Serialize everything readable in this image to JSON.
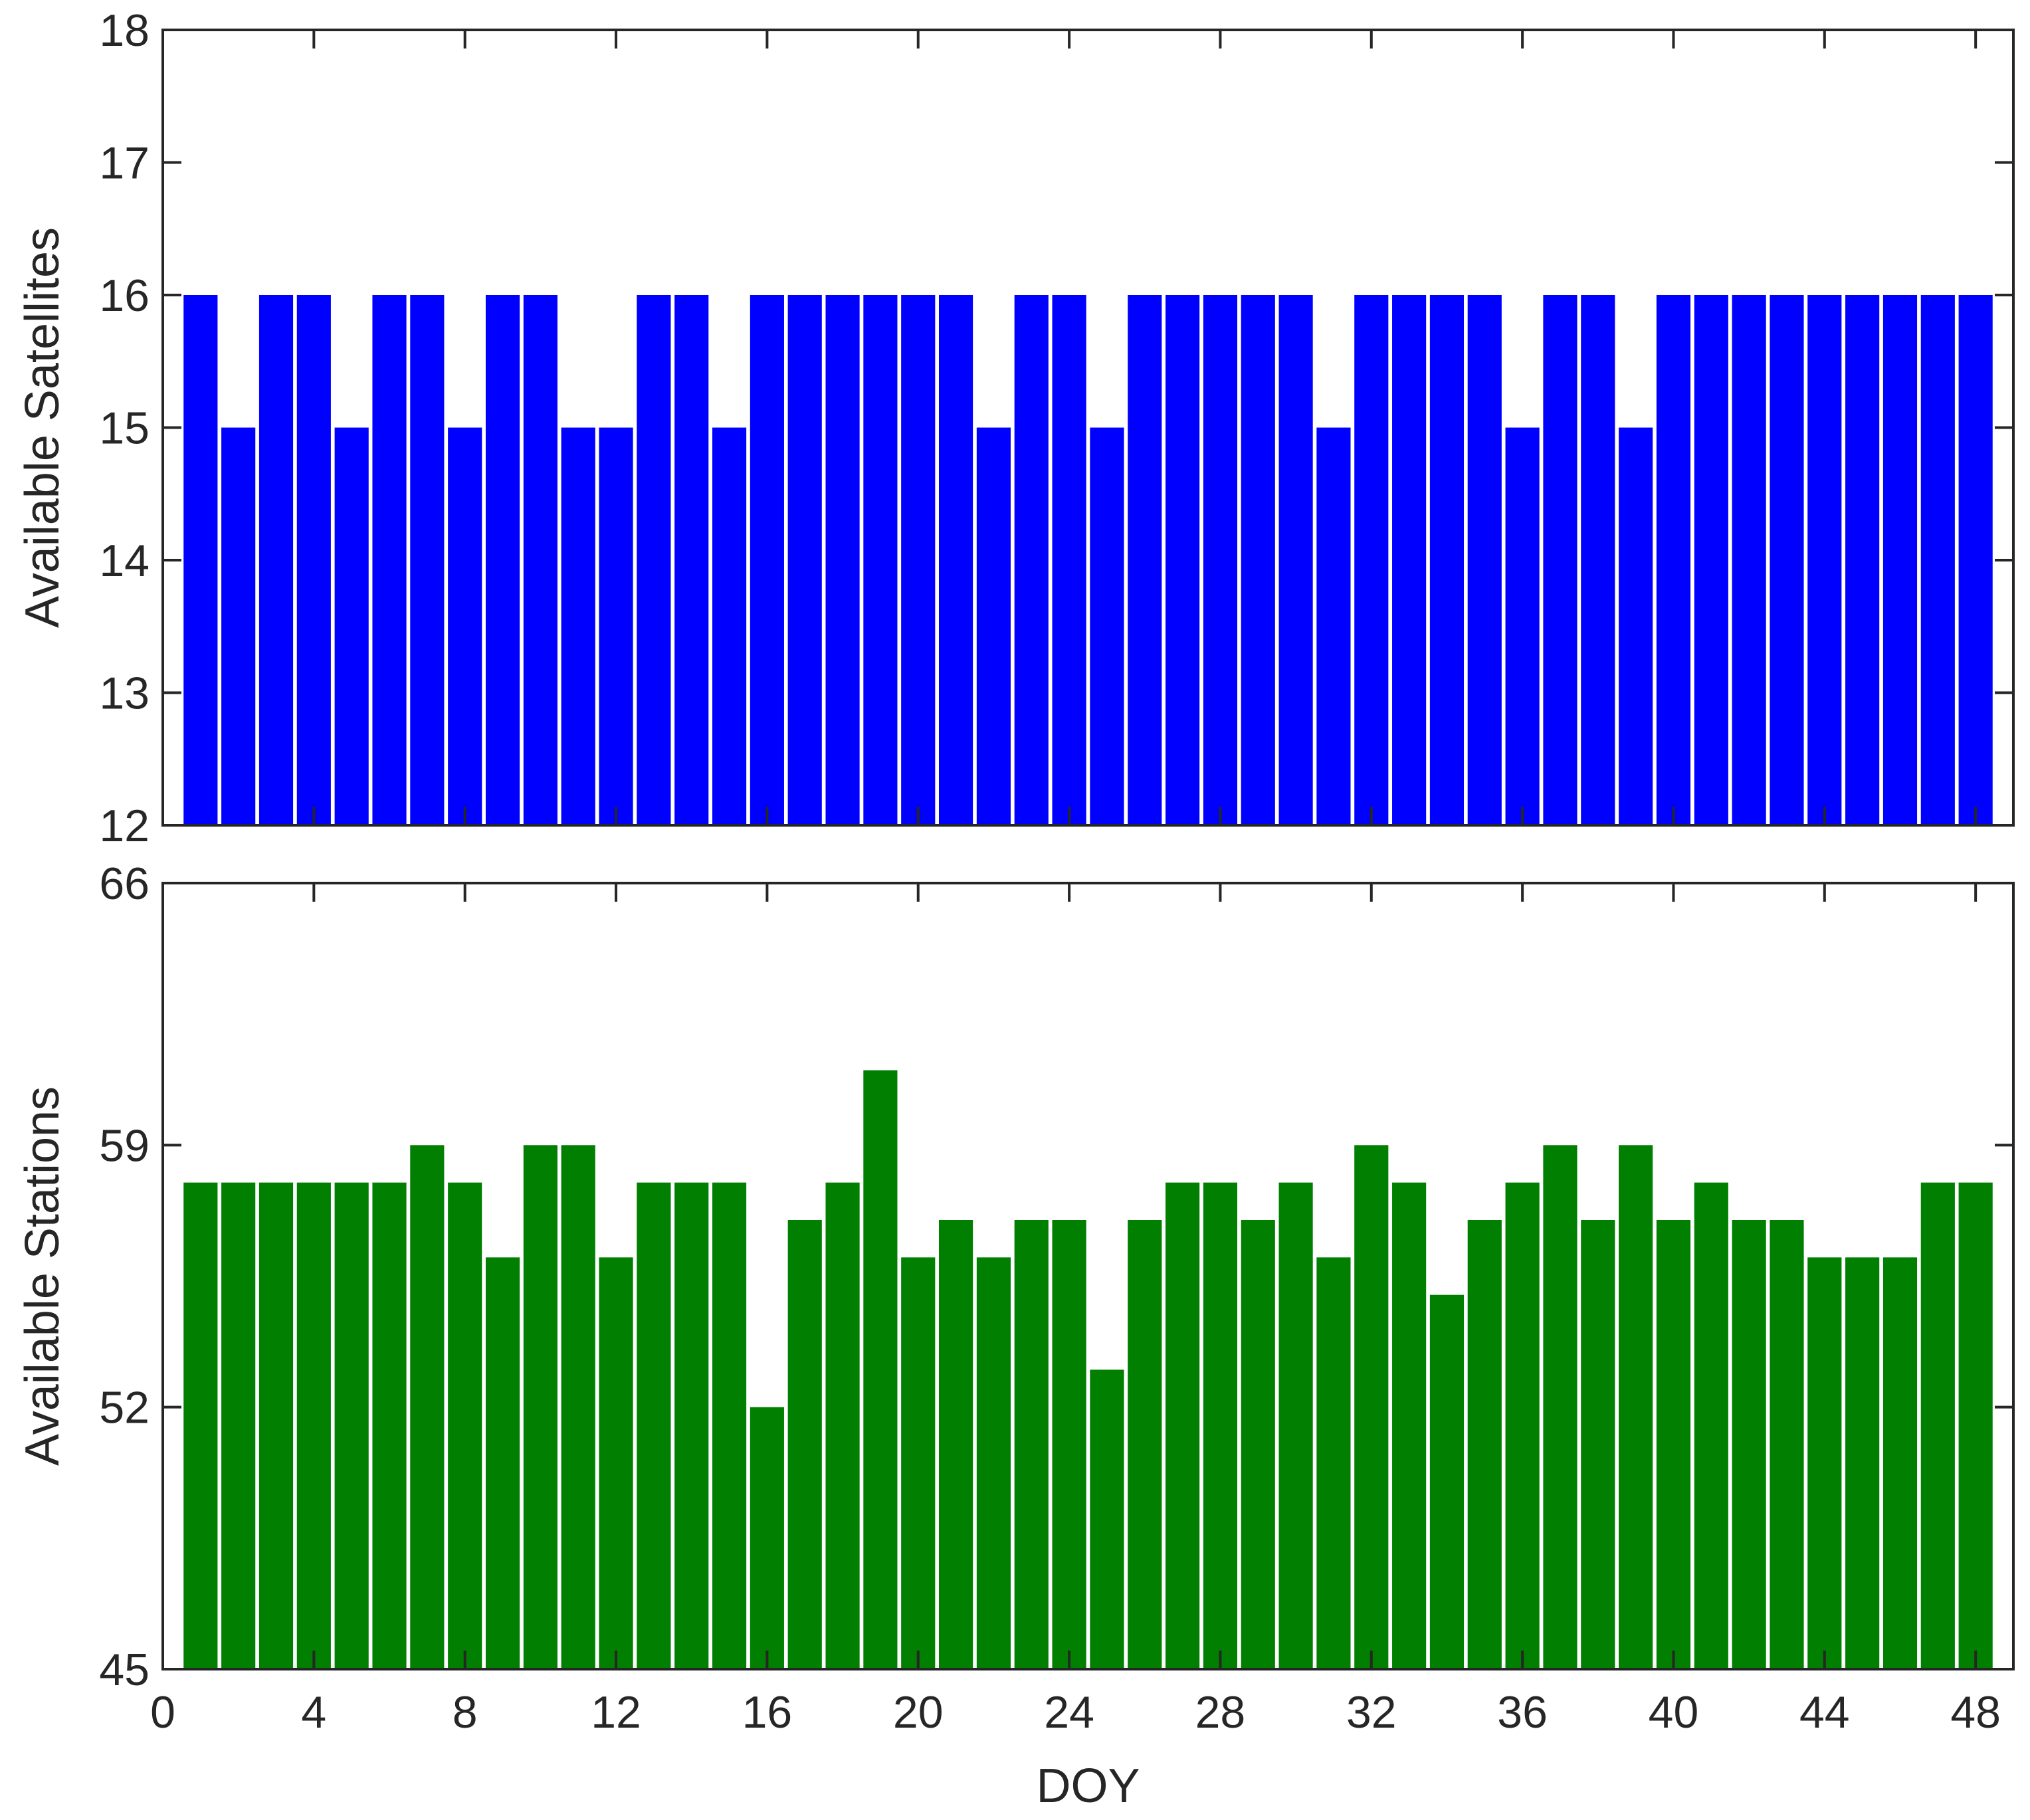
{
  "chart_data": [
    {
      "type": "bar",
      "panel": "top",
      "ylabel": "Available Satellites",
      "xlabel": "",
      "xlim": [
        0,
        49
      ],
      "ylim": [
        12,
        18
      ],
      "yticks": [
        12,
        13,
        14,
        15,
        16,
        17,
        18
      ],
      "xticks": [
        0,
        4,
        8,
        12,
        16,
        20,
        24,
        28,
        32,
        36,
        40,
        44,
        48
      ],
      "x_tick_labels_shown": false,
      "color": "#0000ff",
      "categories": [
        1,
        2,
        3,
        4,
        5,
        6,
        7,
        8,
        9,
        10,
        11,
        12,
        13,
        14,
        15,
        16,
        17,
        18,
        19,
        20,
        21,
        22,
        23,
        24,
        25,
        26,
        27,
        28,
        29,
        30,
        31,
        32,
        33,
        34,
        35,
        36,
        37,
        38,
        39,
        40,
        41,
        42,
        43,
        44,
        45,
        46,
        47,
        48
      ],
      "values": [
        16,
        15,
        16,
        16,
        15,
        16,
        16,
        15,
        16,
        16,
        15,
        15,
        16,
        16,
        15,
        16,
        16,
        16,
        16,
        16,
        16,
        15,
        16,
        16,
        15,
        16,
        16,
        16,
        16,
        16,
        15,
        16,
        16,
        16,
        16,
        15,
        16,
        16,
        15,
        16,
        16,
        16,
        16,
        16,
        16,
        16,
        16,
        16
      ]
    },
    {
      "type": "bar",
      "panel": "bottom",
      "ylabel": "Available Stations",
      "xlabel": "DOY",
      "xlim": [
        0,
        49
      ],
      "ylim": [
        45,
        66
      ],
      "yticks": [
        45,
        52,
        59,
        66
      ],
      "xticks": [
        0,
        4,
        8,
        12,
        16,
        20,
        24,
        28,
        32,
        36,
        40,
        44,
        48
      ],
      "x_tick_labels_shown": true,
      "color": "#007f00",
      "categories": [
        1,
        2,
        3,
        4,
        5,
        6,
        7,
        8,
        9,
        10,
        11,
        12,
        13,
        14,
        15,
        16,
        17,
        18,
        19,
        20,
        21,
        22,
        23,
        24,
        25,
        26,
        27,
        28,
        29,
        30,
        31,
        32,
        33,
        34,
        35,
        36,
        37,
        38,
        39,
        40,
        41,
        42,
        43,
        44,
        45,
        46,
        47,
        48
      ],
      "values": [
        58,
        58,
        58,
        58,
        58,
        58,
        59,
        58,
        56,
        59,
        59,
        56,
        58,
        58,
        58,
        52,
        57,
        58,
        61,
        56,
        57,
        56,
        57,
        57,
        53,
        57,
        58,
        58,
        57,
        58,
        56,
        59,
        58,
        55,
        57,
        58,
        59,
        57,
        59,
        57,
        58,
        57,
        57,
        56,
        56,
        56,
        58,
        58
      ]
    }
  ]
}
